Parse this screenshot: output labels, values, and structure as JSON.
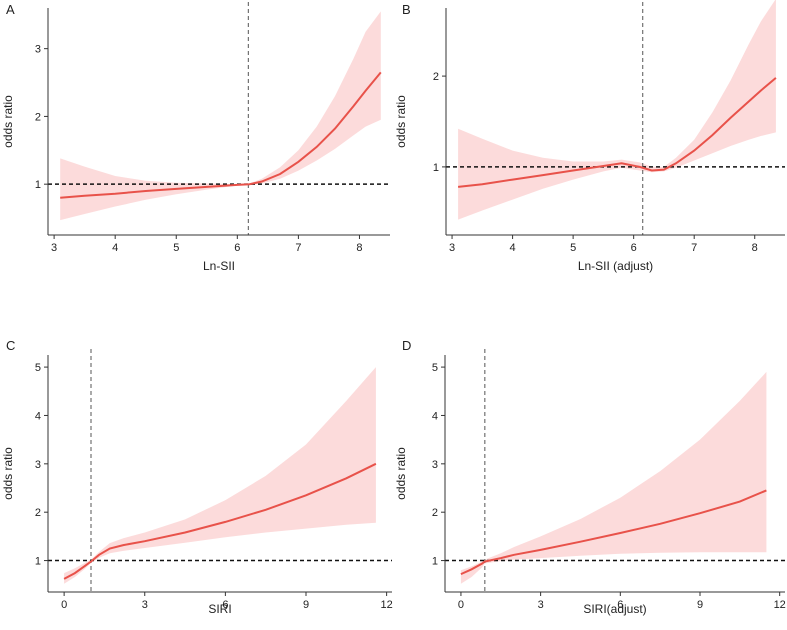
{
  "chart_data": [
    {
      "type": "line",
      "panel_label": "A",
      "xlabel": "Ln-SII",
      "ylabel": "odds ratio",
      "xlim": [
        2.9,
        8.5
      ],
      "ylim": [
        0.25,
        3.6
      ],
      "xticks": [
        3,
        4,
        5,
        6,
        7,
        8
      ],
      "yticks": [
        1,
        2,
        3
      ],
      "ref_y": 1,
      "ref_x": 6.18,
      "series": [
        {
          "name": "OR",
          "x": [
            3.1,
            3.5,
            4.0,
            4.5,
            5.0,
            5.5,
            6.0,
            6.2,
            6.4,
            6.7,
            7.0,
            7.3,
            7.6,
            7.9,
            8.1,
            8.35
          ],
          "y": [
            0.8,
            0.83,
            0.86,
            0.9,
            0.93,
            0.96,
            0.99,
            1.0,
            1.04,
            1.15,
            1.33,
            1.55,
            1.82,
            2.15,
            2.38,
            2.65
          ],
          "lower": [
            0.47,
            0.56,
            0.67,
            0.77,
            0.85,
            0.92,
            0.98,
            0.99,
            1.01,
            1.08,
            1.2,
            1.35,
            1.52,
            1.72,
            1.85,
            1.95
          ],
          "upper": [
            1.38,
            1.26,
            1.12,
            1.05,
            1.02,
            1.01,
            1.0,
            1.01,
            1.08,
            1.25,
            1.5,
            1.85,
            2.3,
            2.85,
            3.25,
            3.55
          ]
        }
      ]
    },
    {
      "type": "line",
      "panel_label": "B",
      "xlabel": "Ln-SII (adjust)",
      "ylabel": "odds ratio",
      "xlim": [
        2.9,
        8.5
      ],
      "ylim": [
        0.25,
        2.75
      ],
      "xticks": [
        3,
        4,
        5,
        6,
        7,
        8
      ],
      "yticks": [
        1,
        2
      ],
      "ref_y": 1,
      "ref_x": 6.15,
      "series": [
        {
          "name": "OR",
          "x": [
            3.1,
            3.5,
            4.0,
            4.5,
            5.0,
            5.5,
            5.8,
            6.1,
            6.3,
            6.5,
            6.7,
            7.0,
            7.3,
            7.6,
            7.9,
            8.1,
            8.35
          ],
          "y": [
            0.78,
            0.81,
            0.86,
            0.91,
            0.96,
            1.01,
            1.04,
            1.0,
            0.96,
            0.97,
            1.04,
            1.18,
            1.35,
            1.54,
            1.72,
            1.84,
            1.98
          ],
          "lower": [
            0.42,
            0.52,
            0.64,
            0.76,
            0.86,
            0.95,
            0.99,
            0.96,
            0.94,
            0.95,
            0.99,
            1.07,
            1.15,
            1.23,
            1.3,
            1.34,
            1.38
          ],
          "upper": [
            1.42,
            1.31,
            1.18,
            1.1,
            1.06,
            1.06,
            1.08,
            1.05,
            1.0,
            1.0,
            1.1,
            1.3,
            1.6,
            1.95,
            2.35,
            2.6,
            2.85
          ]
        }
      ]
    },
    {
      "type": "line",
      "panel_label": "C",
      "xlabel": "SIRI",
      "ylabel": "odds ratio",
      "xlim": [
        -0.6,
        12.2
      ],
      "ylim": [
        0.35,
        5.25
      ],
      "xticks": [
        0,
        3,
        6,
        9,
        12
      ],
      "yticks": [
        1,
        2,
        3,
        4,
        5
      ],
      "ref_y": 1,
      "ref_x": 1.0,
      "series": [
        {
          "name": "OR",
          "x": [
            0.0,
            0.4,
            0.8,
            1.0,
            1.3,
            1.7,
            2.2,
            3.0,
            4.5,
            6.0,
            7.5,
            9.0,
            10.5,
            11.6
          ],
          "y": [
            0.62,
            0.74,
            0.9,
            0.98,
            1.12,
            1.25,
            1.32,
            1.4,
            1.58,
            1.8,
            2.05,
            2.35,
            2.7,
            3.0
          ],
          "lower": [
            0.52,
            0.66,
            0.84,
            0.95,
            1.06,
            1.15,
            1.2,
            1.26,
            1.37,
            1.48,
            1.58,
            1.66,
            1.74,
            1.78
          ],
          "upper": [
            0.74,
            0.84,
            0.96,
            1.02,
            1.18,
            1.36,
            1.46,
            1.58,
            1.85,
            2.25,
            2.75,
            3.4,
            4.3,
            5.0
          ]
        }
      ]
    },
    {
      "type": "line",
      "panel_label": "D",
      "xlabel": "SIRI(adjust)",
      "ylabel": "odds ratio",
      "xlim": [
        -0.6,
        12.2
      ],
      "ylim": [
        0.35,
        5.25
      ],
      "xticks": [
        0,
        3,
        6,
        9,
        12
      ],
      "yticks": [
        1,
        2,
        3,
        4,
        5
      ],
      "ref_y": 1,
      "ref_x": 0.9,
      "series": [
        {
          "name": "OR",
          "x": [
            0.0,
            0.4,
            0.8,
            0.9,
            1.5,
            2.0,
            3.0,
            4.5,
            6.0,
            7.5,
            9.0,
            10.5,
            11.5
          ],
          "y": [
            0.72,
            0.82,
            0.94,
            0.98,
            1.05,
            1.12,
            1.22,
            1.39,
            1.57,
            1.76,
            1.98,
            2.22,
            2.45
          ],
          "lower": [
            0.52,
            0.66,
            0.86,
            0.94,
            0.99,
            1.02,
            1.05,
            1.1,
            1.14,
            1.16,
            1.17,
            1.17,
            1.17
          ],
          "upper": [
            0.8,
            0.88,
            0.98,
            1.02,
            1.15,
            1.28,
            1.5,
            1.86,
            2.3,
            2.85,
            3.5,
            4.3,
            4.9
          ]
        }
      ]
    }
  ]
}
